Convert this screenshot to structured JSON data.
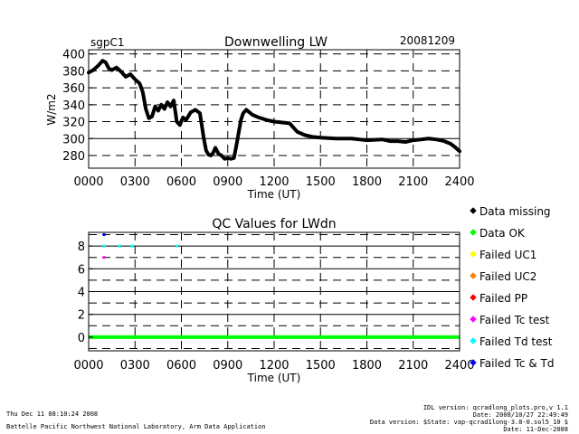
{
  "header": {
    "site": "sgpC1",
    "date": "20081209"
  },
  "chart_data": [
    {
      "type": "line",
      "title": "Downwelling LW",
      "xlabel": "Time (UT)",
      "ylabel": "W/m2",
      "xlim": [
        0,
        2400
      ],
      "ylim": [
        265,
        405
      ],
      "x_ticks": [
        "0000",
        "0300",
        "0600",
        "0900",
        "1200",
        "1500",
        "1800",
        "2100",
        "2400"
      ],
      "y_ticks": [
        "280",
        "300",
        "320",
        "340",
        "360",
        "380",
        "400"
      ],
      "series": [
        {
          "name": "LWdn",
          "x": [
            0,
            30,
            60,
            90,
            110,
            130,
            150,
            180,
            210,
            240,
            270,
            300,
            330,
            350,
            370,
            390,
            410,
            430,
            450,
            470,
            490,
            510,
            530,
            550,
            570,
            590,
            610,
            630,
            660,
            690,
            720,
            745,
            760,
            775,
            790,
            805,
            820,
            840,
            860,
            880,
            900,
            920,
            940,
            960,
            985,
            1000,
            1020,
            1060,
            1100,
            1150,
            1200,
            1300,
            1350,
            1400,
            1450,
            1500,
            1600,
            1700,
            1800,
            1900,
            1950,
            2000,
            2050,
            2100,
            2150,
            2200,
            2250,
            2300,
            2340,
            2370,
            2400
          ],
          "y": [
            378,
            381,
            386,
            392,
            390,
            383,
            381,
            384,
            379,
            373,
            376,
            370,
            365,
            355,
            335,
            324,
            326,
            338,
            333,
            340,
            335,
            343,
            338,
            345,
            320,
            316,
            325,
            322,
            331,
            334,
            330,
            300,
            286,
            281,
            280,
            283,
            289,
            282,
            280,
            276,
            277,
            276,
            277,
            296,
            322,
            330,
            334,
            328,
            325,
            322,
            320,
            318,
            308,
            304,
            302,
            301,
            300,
            300,
            298,
            299,
            297,
            297,
            296,
            298,
            299,
            300,
            299,
            297,
            294,
            290,
            285
          ]
        }
      ]
    },
    {
      "type": "scatter",
      "title": "QC Values for LWdn",
      "xlabel": "Time (UT)",
      "xlim": [
        0,
        2400
      ],
      "ylim": [
        -1.2,
        9.2
      ],
      "x_ticks": [
        "0000",
        "0300",
        "0600",
        "0900",
        "1200",
        "1500",
        "1800",
        "2100",
        "2400"
      ],
      "y_ticks": [
        "0",
        "2",
        "4",
        "6",
        "8"
      ],
      "legend": [
        {
          "label": "Data missing",
          "color": "#000000"
        },
        {
          "label": "Data OK",
          "color": "#00ff00"
        },
        {
          "label": "Failed UC1",
          "color": "#ffff00"
        },
        {
          "label": "Failed UC2",
          "color": "#ff8000"
        },
        {
          "label": "Failed PP",
          "color": "#ff0000"
        },
        {
          "label": "Failed Tc test",
          "color": "#ff00ff"
        },
        {
          "label": "Failed Td test",
          "color": "#00ffff"
        },
        {
          "label": "Failed Tc & Td",
          "color": "#0000ff"
        }
      ],
      "series": [
        {
          "name": "Data OK",
          "color": "#00ff00",
          "x": [
            0,
            2400
          ],
          "y": [
            0,
            0
          ]
        },
        {
          "name": "Failed Tc & Td",
          "color": "#0000ff",
          "x": [
            100
          ],
          "y": [
            9
          ]
        },
        {
          "name": "Failed Td test",
          "color": "#00ffff",
          "x": [
            100,
            200,
            280,
            570
          ],
          "y": [
            8,
            8,
            8,
            8
          ]
        },
        {
          "name": "Failed Tc test",
          "color": "#ff00ff",
          "x": [
            100
          ],
          "y": [
            7
          ]
        }
      ]
    }
  ],
  "footer": {
    "generated": "Thu Dec 11 08:10:24 2008",
    "institution": "Battelle Pacific Northwest National Laboratory, Arm Data Application",
    "idl_version": "IDL version: qcradlong_plots.pro,v 1.1",
    "idl_date": "Date: 2008/10/27 22:49:49",
    "data_version": "Data version: $State: vap-qcrad1long-3.8-0.sol5_10 $",
    "data_date": "Date: 11-Dec-2008"
  }
}
